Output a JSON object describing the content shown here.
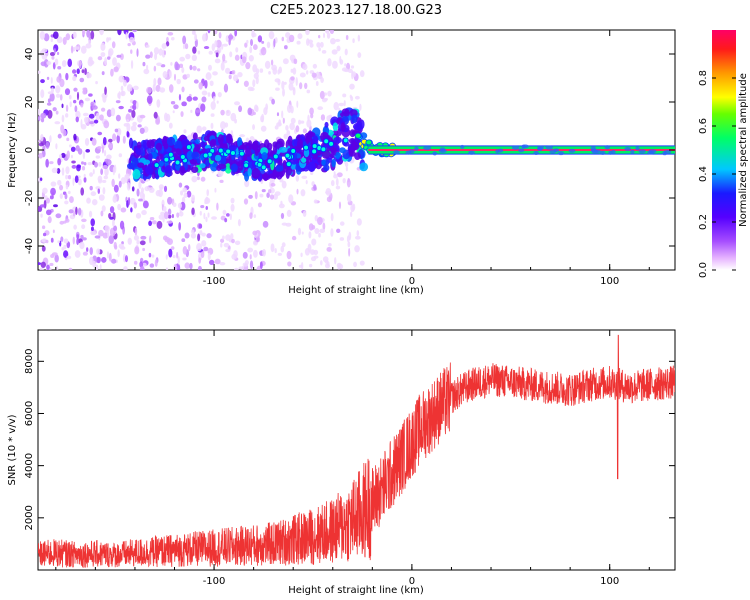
{
  "title": "C2E5.2023.127.18.00.G23",
  "chart_data": [
    {
      "type": "heatmap",
      "xlabel": "Height of straight line (km)",
      "ylabel": "Frequency (Hz)",
      "xlim": [
        -189,
        133
      ],
      "ylim": [
        -50,
        50
      ],
      "x_ticks": [
        -100,
        0,
        100
      ],
      "y_ticks": [
        -40,
        -20,
        0,
        20,
        40
      ],
      "colorbar": {
        "label": "Normalized spectral amplitude",
        "range": [
          0,
          1
        ],
        "ticks": [
          "0.0",
          "0.2",
          "0.4",
          "0.6",
          "0.8"
        ],
        "colormap": [
          "#ffffff",
          "#cc66ff",
          "#7a00ff",
          "#1010ff",
          "#00e0ff",
          "#00ff00",
          "#ffff00",
          "#ff9900",
          "#ff0000",
          "#ff0066"
        ]
      },
      "description_points": {
        "noise_region_end_km": -30,
        "signal_center_track": [
          {
            "x": -140,
            "y": -5
          },
          {
            "x": -100,
            "y": 0
          },
          {
            "x": -80,
            "y": -5
          },
          {
            "x": -60,
            "y": -3
          },
          {
            "x": -40,
            "y": 3
          },
          {
            "x": -30,
            "y": 8
          },
          {
            "x": -25,
            "y": 2
          },
          {
            "x": -15,
            "y": 0
          },
          {
            "x": 0,
            "y": 0
          },
          {
            "x": 133,
            "y": 0
          }
        ]
      }
    },
    {
      "type": "line",
      "xlabel": "Height of straight line (km)",
      "ylabel": "SNR (10 * v/v)",
      "xlim": [
        -189,
        133
      ],
      "ylim": [
        0,
        9200
      ],
      "x_ticks": [
        -100,
        0,
        100
      ],
      "y_ticks": [
        2000,
        4000,
        6000,
        8000
      ],
      "color": "#ee3333",
      "series": [
        {
          "x": [
            -189,
            -180,
            -170,
            -160,
            -150,
            -140,
            -130,
            -120,
            -110,
            -100,
            -90,
            -80,
            -70,
            -60,
            -50,
            -40,
            -35,
            -30,
            -25,
            -20,
            -15,
            -10,
            -5,
            0,
            5,
            10,
            15,
            20,
            25,
            30,
            40,
            50,
            60,
            70,
            80,
            90,
            100,
            105,
            110,
            120,
            133
          ],
          "y": [
            600,
            650,
            600,
            620,
            580,
            650,
            700,
            750,
            800,
            850,
            900,
            950,
            1000,
            1150,
            1300,
            1500,
            1700,
            1900,
            2200,
            2600,
            3100,
            3700,
            4300,
            4900,
            5500,
            5900,
            6300,
            6600,
            6900,
            7100,
            7300,
            7200,
            7100,
            7000,
            6900,
            7100,
            7200,
            7100,
            7000,
            7100,
            7200
          ]
        }
      ],
      "dip": {
        "x": 104,
        "y": 3500
      },
      "spike": {
        "x": 104,
        "y": 9000
      }
    }
  ]
}
